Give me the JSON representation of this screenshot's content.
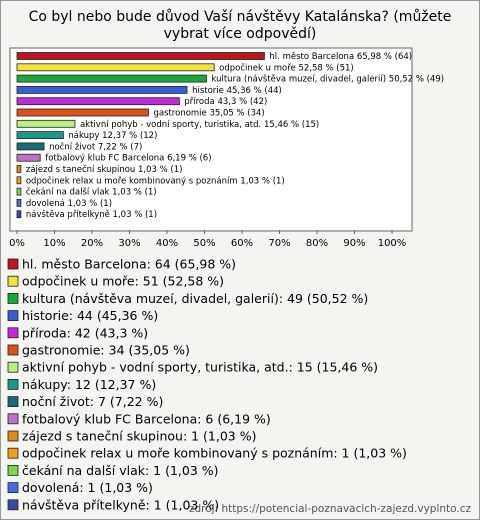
{
  "chart_data": {
    "type": "bar",
    "orientation": "horizontal",
    "title": "Co byl nebo bude důvod Vaší návštěvy Katalánska? (můžete vybrat více odpovědí)",
    "categories": [
      "hl. město Barcelona",
      "odpočinek u moře",
      "kultura (návštěva muzeí, divadel, galerií)",
      "historie",
      "příroda",
      "gastronomie",
      "aktivní pohyb - vodní sporty, turistika, atd.",
      "nákupy",
      "noční život",
      "fotbalový klub FC Barcelona",
      "zájezd s taneční skupinou",
      "odpočinek relax u moře kombinovaný s poznáním",
      "čekání na další vlak",
      "dovolená",
      "návštěva přítelkyně"
    ],
    "values": [
      65.98,
      52.58,
      50.52,
      45.36,
      43.3,
      35.05,
      15.46,
      12.37,
      7.22,
      6.19,
      1.03,
      1.03,
      1.03,
      1.03,
      1.03
    ],
    "bar_labels": [
      "hl. město Barcelona 65,98 % (64)",
      "odpočinek u moře 52,58 % (51)",
      "kultura (návštěva muzeí, divadel, galerií) 50,52 % (49)",
      "historie 45,36 % (44)",
      "příroda 43,3 % (42)",
      "gastronomie 35,05 % (34)",
      "aktivní pohyb - vodní sporty, turistika, atd. 15,46 % (15)",
      "nákupy 12,37 % (12)",
      "noční život 7,22 % (7)",
      "fotbalový klub FC Barcelona 6,19 % (6)",
      "zájezd s taneční skupinou 1,03 % (1)",
      "odpočinek relax u moře kombinovaný s poznáním 1,03 % (1)",
      "čekání na další vlak 1,03 % (1)",
      "dovolená 1,03 % (1)",
      "návštěva přítelkyně 1,03 % (1)"
    ],
    "legend_labels": [
      "hl. město Barcelona: 64 (65,98 %)",
      "odpočinek u moře: 51 (52,58 %)",
      "kultura (návštěva muzeí, divadel, galerií): 49 (50,52 %)",
      "historie: 44 (45,36 %)",
      "příroda: 42 (43,3 %)",
      "gastronomie: 34 (35,05 %)",
      "aktivní pohyb - vodní sporty, turistika, atd.: 15 (15,46 %)",
      "nákupy: 12 (12,37 %)",
      "noční život: 7 (7,22 %)",
      "fotbalový klub FC Barcelona: 6 (6,19 %)",
      "zájezd s taneční skupinou: 1 (1,03 %)",
      "odpočinek relax u moře kombinovaný s poznáním: 1 (1,03 %)",
      "čekání na další vlak: 1 (1,03 %)",
      "dovolená: 1 (1,03 %)",
      "návštěva přítelkyně: 1 (1,03 %)"
    ],
    "colors": [
      "#c0141c",
      "#f2e23c",
      "#1aa83a",
      "#3a5ed8",
      "#c02ad8",
      "#e0501a",
      "#b8f080",
      "#1a9a8a",
      "#1a6a7a",
      "#c070c8",
      "#e08a10",
      "#f0a020",
      "#7ad84a",
      "#4a6ae0",
      "#3a4aa0"
    ],
    "xlim": [
      0,
      100
    ],
    "xticks": [
      {
        "value": 0,
        "label": "0%"
      },
      {
        "value": 10,
        "label": "10%"
      },
      {
        "value": 20,
        "label": "20%"
      },
      {
        "value": 30,
        "label": "30%"
      },
      {
        "value": 40,
        "label": "40%"
      },
      {
        "value": 50,
        "label": "50%"
      },
      {
        "value": 60,
        "label": "60%"
      },
      {
        "value": 70,
        "label": "70%"
      },
      {
        "value": 80,
        "label": "80%"
      },
      {
        "value": 90,
        "label": "90%"
      },
      {
        "value": 100,
        "label": "100%"
      }
    ],
    "source": "zdroj: https://potencial-poznavacich-zajezd.vyplnto.cz"
  }
}
